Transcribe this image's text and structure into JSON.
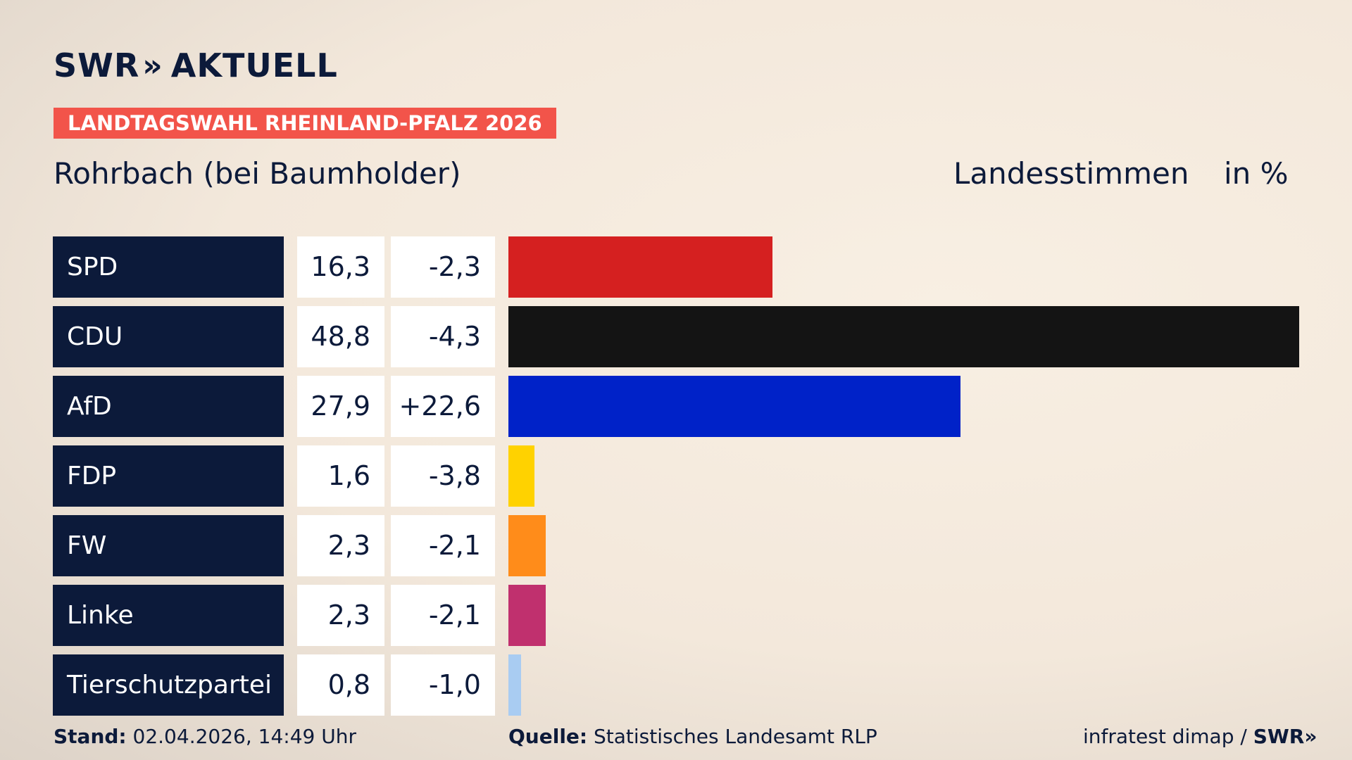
{
  "header": {
    "logo": "SWR",
    "logo_chevrons": "»",
    "logo_suffix": "AKTUELL",
    "banner": "LANDTAGSWAHL RHEINLAND-PFALZ 2026",
    "region": "Rohrbach (bei Baumholder)",
    "metric": "Landesstimmen",
    "unit": "in %"
  },
  "chart_data": {
    "type": "bar",
    "orientation": "horizontal",
    "categories": [
      "SPD",
      "CDU",
      "AfD",
      "FDP",
      "FW",
      "Linke",
      "Tierschutzpartei"
    ],
    "values": [
      16.3,
      48.8,
      27.9,
      1.6,
      2.3,
      2.3,
      0.8
    ],
    "value_labels": [
      "16,3",
      "48,8",
      "27,9",
      "1,6",
      "2,3",
      "2,3",
      "0,8"
    ],
    "changes": [
      -2.3,
      -4.3,
      22.6,
      -3.8,
      -2.1,
      -2.1,
      -1.0
    ],
    "change_labels": [
      "-2,3",
      "-4,3",
      "+22,6",
      "-3,8",
      "-2,1",
      "-2,1",
      "-1,0"
    ],
    "colors": [
      "#d52020",
      "#141414",
      "#0022c8",
      "#ffd200",
      "#ff8c1a",
      "#c0306e",
      "#a9ccf2"
    ],
    "xlim": [
      0,
      48.8
    ],
    "grid": false,
    "legend": "none"
  },
  "footer": {
    "stand_label": "Stand:",
    "stand_value": "02.04.2026, 14:49 Uhr",
    "source_label": "Quelle:",
    "source_value": "Statistisches Landesamt RLP",
    "credit": "infratest dimap /",
    "credit_logo": "SWR",
    "credit_chevrons": "»"
  }
}
